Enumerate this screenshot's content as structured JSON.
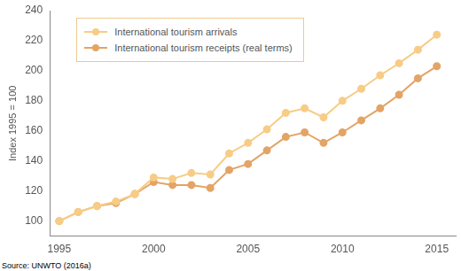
{
  "chart_data": {
    "type": "line",
    "y_label": "Index 1995 = 100",
    "source": "Source: UNWTO (2016a)",
    "x": [
      1995,
      1996,
      1997,
      1998,
      1999,
      2000,
      2001,
      2002,
      2003,
      2004,
      2005,
      2006,
      2007,
      2008,
      2009,
      2010,
      2011,
      2012,
      2013,
      2014,
      2015
    ],
    "series": [
      {
        "name": "International tourism arrivals",
        "color": "#f7cc85",
        "marker": "circle",
        "values": [
          100,
          106,
          110,
          113,
          118,
          129,
          128,
          132,
          131,
          145,
          152,
          161,
          172,
          175,
          169,
          180,
          188,
          197,
          205,
          214,
          224
        ]
      },
      {
        "name": "International tourism receipts (real terms)",
        "color": "#e3a466",
        "marker": "circle",
        "values": [
          100,
          106,
          110,
          112,
          118,
          126,
          124,
          124,
          122,
          134,
          138,
          147,
          156,
          159,
          152,
          159,
          167,
          175,
          184,
          195,
          203
        ]
      }
    ],
    "xlim": [
      1994.5,
      2016
    ],
    "xticks": [
      1995,
      2000,
      2005,
      2010,
      2015
    ],
    "ylim": [
      90,
      240
    ],
    "yticks": [
      100,
      120,
      140,
      160,
      180,
      200,
      220,
      240
    ],
    "grid": false,
    "legend": "top-left"
  }
}
